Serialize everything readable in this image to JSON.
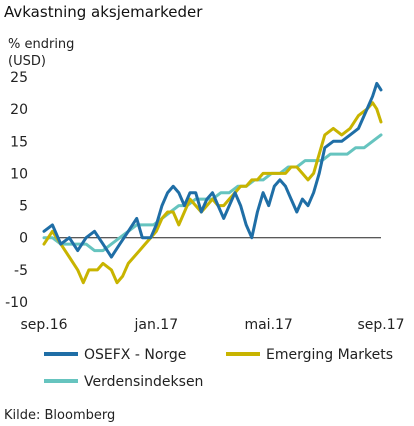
{
  "chart_data": {
    "type": "line",
    "title": "Avkastning aksjemarkeder",
    "ylabel_line1": "% endring",
    "ylabel_line2": "(USD)",
    "source": "Kilde: Bloomberg",
    "ylim": [
      -10,
      25
    ],
    "yticks": [
      -10,
      -5,
      0,
      5,
      10,
      15,
      20,
      25
    ],
    "xlim": [
      0,
      12
    ],
    "xticks": [
      {
        "pos": 0,
        "label": "sep.16"
      },
      {
        "pos": 4,
        "label": "jan.17"
      },
      {
        "pos": 8,
        "label": "mai.17"
      },
      {
        "pos": 12,
        "label": "sep.17"
      }
    ],
    "zero_line": true,
    "grid": false,
    "legend_position": "bottom",
    "series": [
      {
        "name": "OSEFX - Norge",
        "color": "#1f6ea6",
        "points": [
          [
            0,
            1
          ],
          [
            0.3,
            2
          ],
          [
            0.6,
            -1
          ],
          [
            0.9,
            0
          ],
          [
            1.2,
            -2
          ],
          [
            1.5,
            0
          ],
          [
            1.8,
            1
          ],
          [
            2.1,
            -1
          ],
          [
            2.4,
            -3
          ],
          [
            2.7,
            -1
          ],
          [
            3.0,
            1
          ],
          [
            3.3,
            3
          ],
          [
            3.5,
            0
          ],
          [
            3.8,
            0
          ],
          [
            4.0,
            2
          ],
          [
            4.2,
            5
          ],
          [
            4.4,
            7
          ],
          [
            4.6,
            8
          ],
          [
            4.8,
            7
          ],
          [
            5.0,
            5
          ],
          [
            5.2,
            7
          ],
          [
            5.4,
            7
          ],
          [
            5.6,
            4
          ],
          [
            5.8,
            6
          ],
          [
            6.0,
            7
          ],
          [
            6.2,
            5
          ],
          [
            6.4,
            3
          ],
          [
            6.6,
            5
          ],
          [
            6.8,
            7
          ],
          [
            7.0,
            5
          ],
          [
            7.2,
            2
          ],
          [
            7.4,
            0
          ],
          [
            7.6,
            4
          ],
          [
            7.8,
            7
          ],
          [
            8.0,
            5
          ],
          [
            8.2,
            8
          ],
          [
            8.4,
            9
          ],
          [
            8.6,
            8
          ],
          [
            8.8,
            6
          ],
          [
            9.0,
            4
          ],
          [
            9.2,
            6
          ],
          [
            9.4,
            5
          ],
          [
            9.6,
            7
          ],
          [
            9.8,
            10
          ],
          [
            10.0,
            14
          ],
          [
            10.3,
            15
          ],
          [
            10.6,
            15
          ],
          [
            10.9,
            16
          ],
          [
            11.2,
            17
          ],
          [
            11.5,
            20
          ],
          [
            11.7,
            22
          ],
          [
            11.85,
            24
          ],
          [
            12.0,
            23
          ]
        ]
      },
      {
        "name": "Emerging Markets",
        "color": "#c8b400",
        "points": [
          [
            0,
            -1
          ],
          [
            0.3,
            1
          ],
          [
            0.6,
            -1
          ],
          [
            0.9,
            -3
          ],
          [
            1.2,
            -5
          ],
          [
            1.4,
            -7
          ],
          [
            1.6,
            -5
          ],
          [
            1.9,
            -5
          ],
          [
            2.1,
            -4
          ],
          [
            2.4,
            -5
          ],
          [
            2.6,
            -7
          ],
          [
            2.8,
            -6
          ],
          [
            3.0,
            -4
          ],
          [
            3.2,
            -3
          ],
          [
            3.4,
            -2
          ],
          [
            3.6,
            -1
          ],
          [
            3.8,
            0
          ],
          [
            4.0,
            1
          ],
          [
            4.2,
            3
          ],
          [
            4.4,
            4
          ],
          [
            4.6,
            4
          ],
          [
            4.8,
            2
          ],
          [
            5.0,
            4
          ],
          [
            5.2,
            6
          ],
          [
            5.4,
            5
          ],
          [
            5.6,
            4
          ],
          [
            5.8,
            5
          ],
          [
            6.0,
            6
          ],
          [
            6.2,
            5
          ],
          [
            6.4,
            5
          ],
          [
            6.6,
            6
          ],
          [
            6.8,
            7
          ],
          [
            7.0,
            8
          ],
          [
            7.2,
            8
          ],
          [
            7.4,
            9
          ],
          [
            7.6,
            9
          ],
          [
            7.8,
            10
          ],
          [
            8.0,
            10
          ],
          [
            8.2,
            10
          ],
          [
            8.4,
            10
          ],
          [
            8.6,
            10
          ],
          [
            8.8,
            11
          ],
          [
            9.0,
            11
          ],
          [
            9.2,
            10
          ],
          [
            9.4,
            9
          ],
          [
            9.6,
            10
          ],
          [
            9.8,
            13
          ],
          [
            10.0,
            16
          ],
          [
            10.3,
            17
          ],
          [
            10.6,
            16
          ],
          [
            10.9,
            17
          ],
          [
            11.2,
            19
          ],
          [
            11.5,
            20
          ],
          [
            11.7,
            21
          ],
          [
            11.85,
            20
          ],
          [
            12.0,
            18
          ]
        ]
      },
      {
        "name": "Verdensindeksen",
        "color": "#66c4bf",
        "points": [
          [
            0,
            0
          ],
          [
            0.3,
            0
          ],
          [
            0.6,
            -1
          ],
          [
            0.9,
            -1
          ],
          [
            1.2,
            -1
          ],
          [
            1.5,
            -1
          ],
          [
            1.8,
            -2
          ],
          [
            2.1,
            -2
          ],
          [
            2.4,
            -1
          ],
          [
            2.7,
            0
          ],
          [
            3.0,
            1
          ],
          [
            3.3,
            2
          ],
          [
            3.6,
            2
          ],
          [
            3.9,
            2
          ],
          [
            4.2,
            3
          ],
          [
            4.5,
            4
          ],
          [
            4.8,
            5
          ],
          [
            5.1,
            5
          ],
          [
            5.4,
            6
          ],
          [
            5.7,
            6
          ],
          [
            6.0,
            6
          ],
          [
            6.3,
            7
          ],
          [
            6.6,
            7
          ],
          [
            6.9,
            8
          ],
          [
            7.2,
            8
          ],
          [
            7.5,
            9
          ],
          [
            7.8,
            9
          ],
          [
            8.1,
            10
          ],
          [
            8.4,
            10
          ],
          [
            8.7,
            11
          ],
          [
            9.0,
            11
          ],
          [
            9.3,
            12
          ],
          [
            9.6,
            12
          ],
          [
            9.9,
            12
          ],
          [
            10.2,
            13
          ],
          [
            10.5,
            13
          ],
          [
            10.8,
            13
          ],
          [
            11.1,
            14
          ],
          [
            11.4,
            14
          ],
          [
            11.7,
            15
          ],
          [
            12.0,
            16
          ]
        ]
      }
    ]
  }
}
